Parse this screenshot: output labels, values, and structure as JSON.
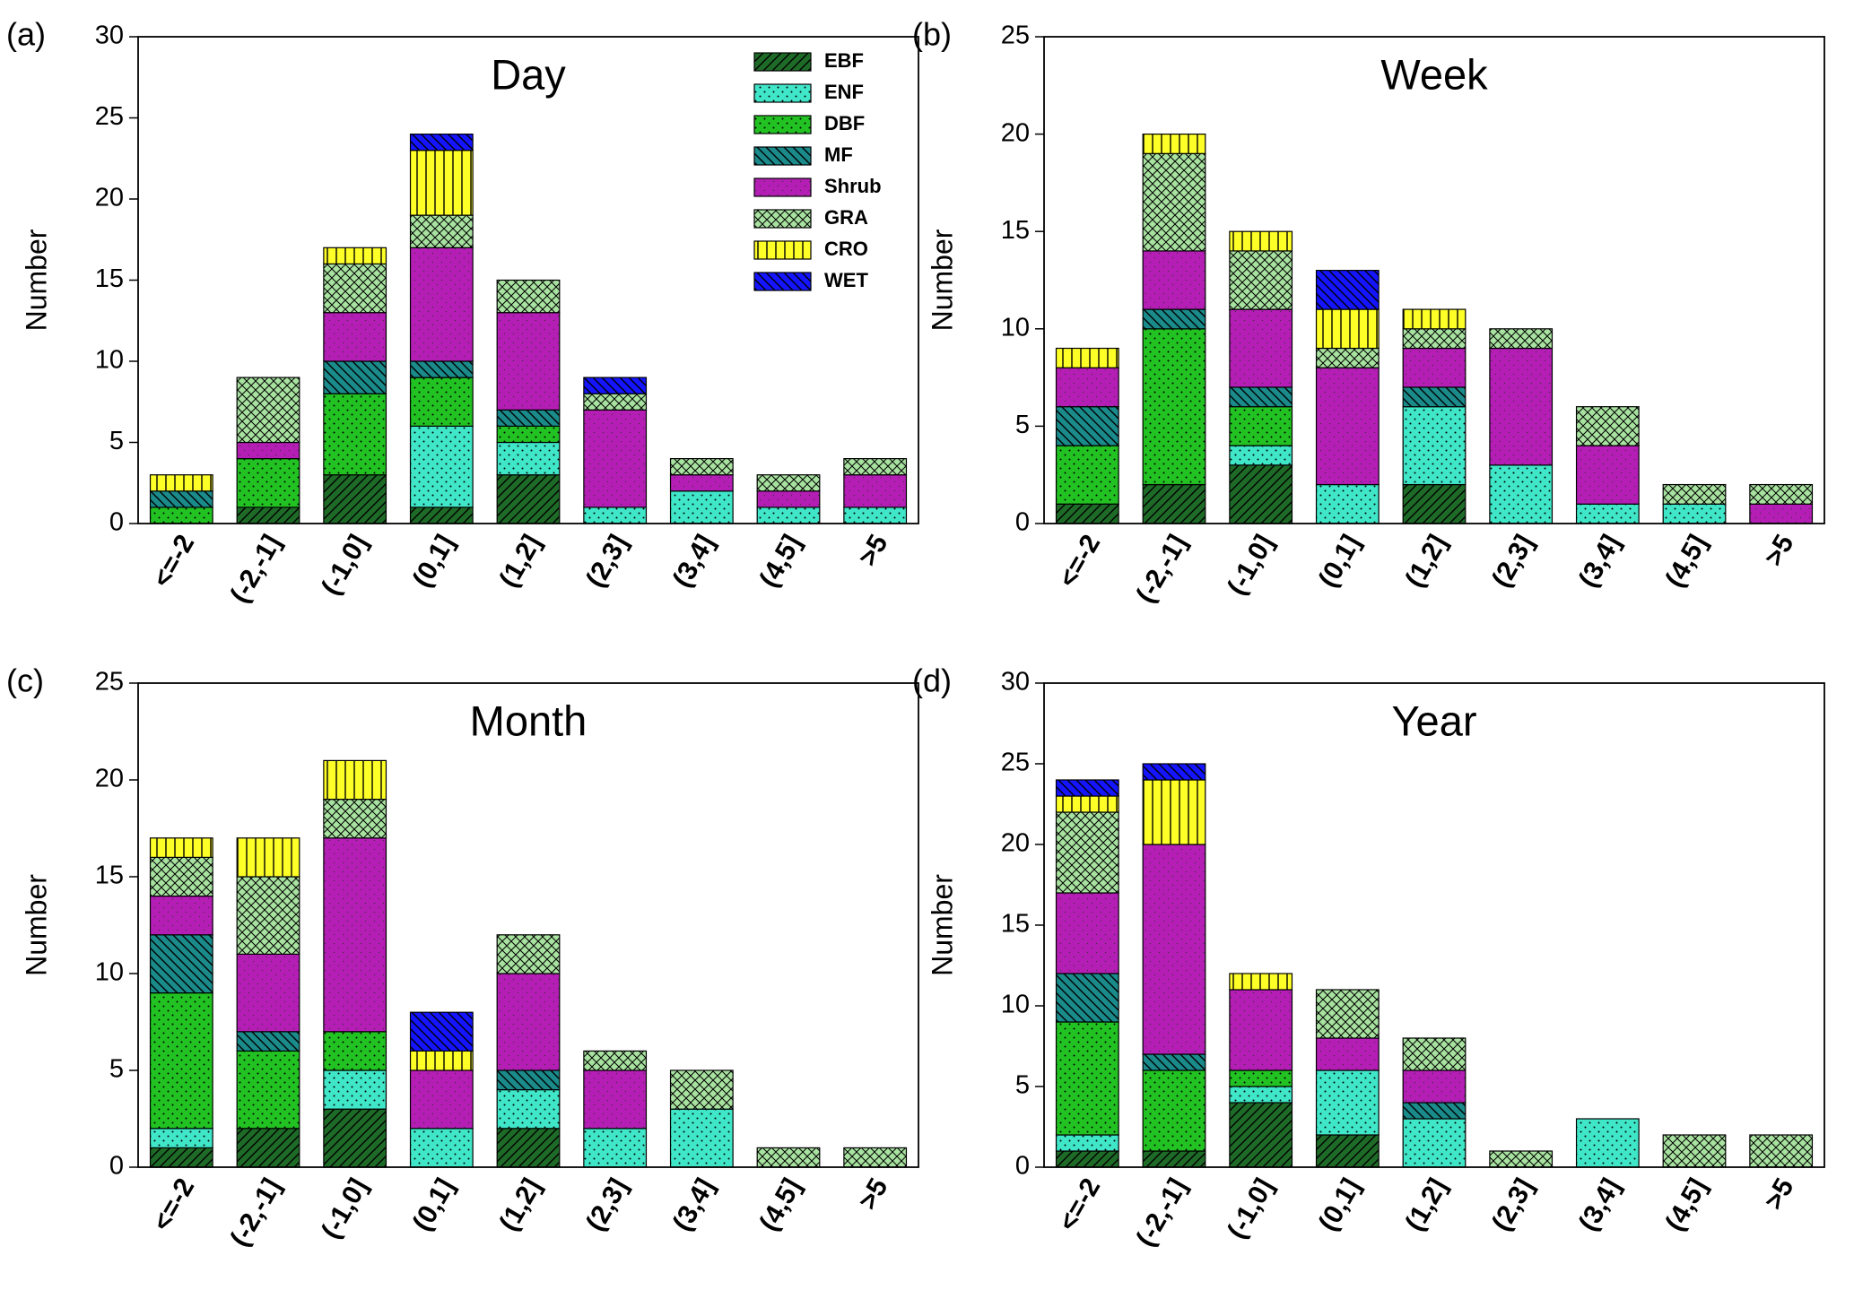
{
  "chart_data": [
    {
      "type": "bar",
      "stacked": true,
      "panel_label": "(a)",
      "title": "Day",
      "y_label": "Number",
      "legend": "upper right",
      "categories": [
        "<=-2",
        "(-2,-1]",
        "(-1,0]",
        "(0,1]",
        "(1,2]",
        "(2,3]",
        "(3,4]",
        "(4,5]",
        ">5"
      ],
      "ylim": [
        0,
        30
      ],
      "yticks": [
        0,
        5,
        10,
        15,
        20,
        25,
        30
      ],
      "series": [
        {
          "name": "EBF",
          "color": "#1e6b28",
          "hatch": "diagonal",
          "values": [
            0,
            1,
            3,
            1,
            3,
            0,
            0,
            0,
            0
          ]
        },
        {
          "name": "ENF",
          "color": "#40e6c8",
          "hatch": "dots",
          "values": [
            0,
            0,
            0,
            5,
            2,
            1,
            2,
            1,
            1
          ]
        },
        {
          "name": "DBF",
          "color": "#22c222",
          "hatch": "dots",
          "values": [
            1,
            3,
            5,
            3,
            1,
            0,
            0,
            0,
            0
          ]
        },
        {
          "name": "MF",
          "color": "#1a8a8a",
          "hatch": "backdiagonal",
          "values": [
            1,
            0,
            2,
            1,
            1,
            0,
            0,
            0,
            0
          ]
        },
        {
          "name": "Shrub",
          "color": "#b41eb4",
          "hatch": "finedots",
          "values": [
            0,
            1,
            3,
            7,
            6,
            6,
            1,
            1,
            2
          ]
        },
        {
          "name": "GRA",
          "color": "#a8e2a0",
          "hatch": "cross",
          "values": [
            0,
            4,
            3,
            2,
            2,
            1,
            1,
            1,
            1
          ]
        },
        {
          "name": "CRO",
          "color": "#ffff28",
          "hatch": "vertical",
          "values": [
            1,
            0,
            1,
            4,
            0,
            0,
            0,
            0,
            0
          ]
        },
        {
          "name": "WET",
          "color": "#1414ff",
          "hatch": "backdiagonal",
          "values": [
            0,
            0,
            0,
            1,
            0,
            1,
            0,
            0,
            0
          ]
        }
      ]
    },
    {
      "type": "bar",
      "stacked": true,
      "panel_label": "(b)",
      "title": "Week",
      "y_label": "Number",
      "categories": [
        "<=-2",
        "(-2,-1]",
        "(-1,0]",
        "(0,1]",
        "(1,2]",
        "(2,3]",
        "(3,4]",
        "(4,5]",
        ">5"
      ],
      "ylim": [
        0,
        25
      ],
      "yticks": [
        0,
        5,
        10,
        15,
        20,
        25
      ],
      "series": [
        {
          "name": "EBF",
          "color": "#1e6b28",
          "hatch": "diagonal",
          "values": [
            1,
            2,
            3,
            0,
            2,
            0,
            0,
            0,
            0
          ]
        },
        {
          "name": "ENF",
          "color": "#40e6c8",
          "hatch": "dots",
          "values": [
            0,
            0,
            1,
            2,
            4,
            3,
            1,
            1,
            0
          ]
        },
        {
          "name": "DBF",
          "color": "#22c222",
          "hatch": "dots",
          "values": [
            3,
            8,
            2,
            0,
            0,
            0,
            0,
            0,
            0
          ]
        },
        {
          "name": "MF",
          "color": "#1a8a8a",
          "hatch": "backdiagonal",
          "values": [
            2,
            1,
            1,
            0,
            1,
            0,
            0,
            0,
            0
          ]
        },
        {
          "name": "Shrub",
          "color": "#b41eb4",
          "hatch": "finedots",
          "values": [
            2,
            3,
            4,
            6,
            2,
            6,
            3,
            0,
            1
          ]
        },
        {
          "name": "GRA",
          "color": "#a8e2a0",
          "hatch": "cross",
          "values": [
            0,
            5,
            3,
            1,
            1,
            1,
            2,
            1,
            1
          ]
        },
        {
          "name": "CRO",
          "color": "#ffff28",
          "hatch": "vertical",
          "values": [
            1,
            1,
            1,
            2,
            1,
            0,
            0,
            0,
            0
          ]
        },
        {
          "name": "WET",
          "color": "#1414ff",
          "hatch": "backdiagonal",
          "values": [
            0,
            0,
            0,
            2,
            0,
            0,
            0,
            0,
            0
          ]
        }
      ]
    },
    {
      "type": "bar",
      "stacked": true,
      "panel_label": "(c)",
      "title": "Month",
      "y_label": "Number",
      "categories": [
        "<=-2",
        "(-2,-1]",
        "(-1,0]",
        "(0,1]",
        "(1,2]",
        "(2,3]",
        "(3,4]",
        "(4,5]",
        ">5"
      ],
      "ylim": [
        0,
        25
      ],
      "yticks": [
        0,
        5,
        10,
        15,
        20,
        25
      ],
      "series": [
        {
          "name": "EBF",
          "color": "#1e6b28",
          "hatch": "diagonal",
          "values": [
            1,
            2,
            3,
            0,
            2,
            0,
            0,
            0,
            0
          ]
        },
        {
          "name": "ENF",
          "color": "#40e6c8",
          "hatch": "dots",
          "values": [
            1,
            0,
            2,
            2,
            2,
            2,
            3,
            0,
            0
          ]
        },
        {
          "name": "DBF",
          "color": "#22c222",
          "hatch": "dots",
          "values": [
            7,
            4,
            2,
            0,
            0,
            0,
            0,
            0,
            0
          ]
        },
        {
          "name": "MF",
          "color": "#1a8a8a",
          "hatch": "backdiagonal",
          "values": [
            3,
            1,
            0,
            0,
            1,
            0,
            0,
            0,
            0
          ]
        },
        {
          "name": "Shrub",
          "color": "#b41eb4",
          "hatch": "finedots",
          "values": [
            2,
            4,
            10,
            3,
            5,
            3,
            0,
            0,
            0
          ]
        },
        {
          "name": "GRA",
          "color": "#a8e2a0",
          "hatch": "cross",
          "values": [
            2,
            4,
            2,
            0,
            2,
            1,
            2,
            1,
            1
          ]
        },
        {
          "name": "CRO",
          "color": "#ffff28",
          "hatch": "vertical",
          "values": [
            1,
            2,
            2,
            1,
            0,
            0,
            0,
            0,
            0
          ]
        },
        {
          "name": "WET",
          "color": "#1414ff",
          "hatch": "backdiagonal",
          "values": [
            0,
            0,
            0,
            2,
            0,
            0,
            0,
            0,
            0
          ]
        }
      ]
    },
    {
      "type": "bar",
      "stacked": true,
      "panel_label": "(d)",
      "title": "Year",
      "y_label": "Number",
      "categories": [
        "<=-2",
        "(-2,-1]",
        "(-1,0]",
        "(0,1]",
        "(1,2]",
        "(2,3]",
        "(3,4]",
        "(4,5]",
        ">5"
      ],
      "ylim": [
        0,
        30
      ],
      "yticks": [
        0,
        5,
        10,
        15,
        20,
        25,
        30
      ],
      "series": [
        {
          "name": "EBF",
          "color": "#1e6b28",
          "hatch": "diagonal",
          "values": [
            1,
            1,
            4,
            2,
            0,
            0,
            0,
            0,
            0
          ]
        },
        {
          "name": "ENF",
          "color": "#40e6c8",
          "hatch": "dots",
          "values": [
            1,
            0,
            1,
            4,
            3,
            0,
            3,
            0,
            0
          ]
        },
        {
          "name": "DBF",
          "color": "#22c222",
          "hatch": "dots",
          "values": [
            7,
            5,
            1,
            0,
            0,
            0,
            0,
            0,
            0
          ]
        },
        {
          "name": "MF",
          "color": "#1a8a8a",
          "hatch": "backdiagonal",
          "values": [
            3,
            1,
            0,
            0,
            1,
            0,
            0,
            0,
            0
          ]
        },
        {
          "name": "Shrub",
          "color": "#b41eb4",
          "hatch": "finedots",
          "values": [
            5,
            13,
            5,
            2,
            2,
            0,
            0,
            0,
            0
          ]
        },
        {
          "name": "GRA",
          "color": "#a8e2a0",
          "hatch": "cross",
          "values": [
            5,
            0,
            0,
            3,
            2,
            1,
            0,
            2,
            2
          ]
        },
        {
          "name": "CRO",
          "color": "#ffff28",
          "hatch": "vertical",
          "values": [
            1,
            4,
            1,
            0,
            0,
            0,
            0,
            0,
            0
          ]
        },
        {
          "name": "WET",
          "color": "#1414ff",
          "hatch": "backdiagonal",
          "values": [
            1,
            1,
            0,
            0,
            0,
            0,
            0,
            0,
            0
          ]
        }
      ]
    }
  ]
}
